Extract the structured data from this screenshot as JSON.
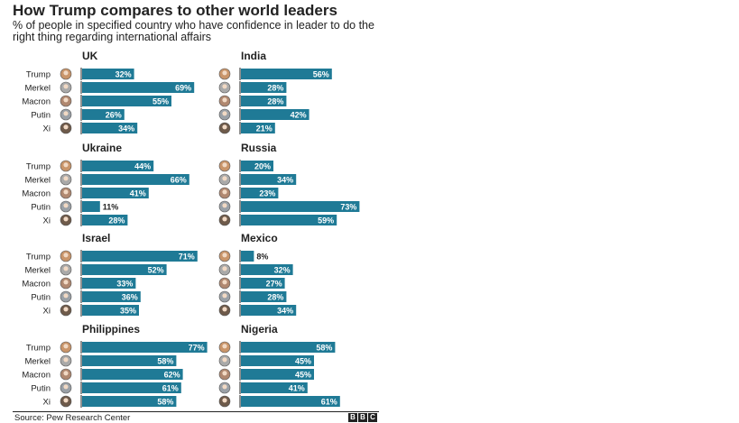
{
  "title": "How Trump compares to other world leaders",
  "subtitle": "% of people in specified country who have confidence in leader to do the right thing regarding international affairs",
  "source": "Source: Pew Research Center",
  "logo": [
    "B",
    "B",
    "C"
  ],
  "colors": {
    "bar": "#1f7a96",
    "text": "#222222",
    "label_on_bar": "#ffffff"
  },
  "chart_data": {
    "type": "bar",
    "orientation": "horizontal",
    "categories": [
      "Trump",
      "Merkel",
      "Macron",
      "Putin",
      "Xi"
    ],
    "xlim": [
      0,
      100
    ],
    "panels": [
      {
        "country": "UK",
        "values": [
          32,
          69,
          55,
          26,
          34
        ]
      },
      {
        "country": "India",
        "values": [
          56,
          28,
          28,
          42,
          21
        ]
      },
      {
        "country": "Ukraine",
        "values": [
          44,
          66,
          41,
          11,
          28
        ]
      },
      {
        "country": "Russia",
        "values": [
          20,
          34,
          23,
          73,
          59
        ]
      },
      {
        "country": "Israel",
        "values": [
          71,
          52,
          33,
          36,
          35
        ]
      },
      {
        "country": "Mexico",
        "values": [
          8,
          32,
          27,
          28,
          34
        ]
      },
      {
        "country": "Philippines",
        "values": [
          77,
          58,
          62,
          61,
          58
        ]
      },
      {
        "country": "Nigeria",
        "values": [
          58,
          45,
          45,
          41,
          61
        ]
      }
    ]
  }
}
